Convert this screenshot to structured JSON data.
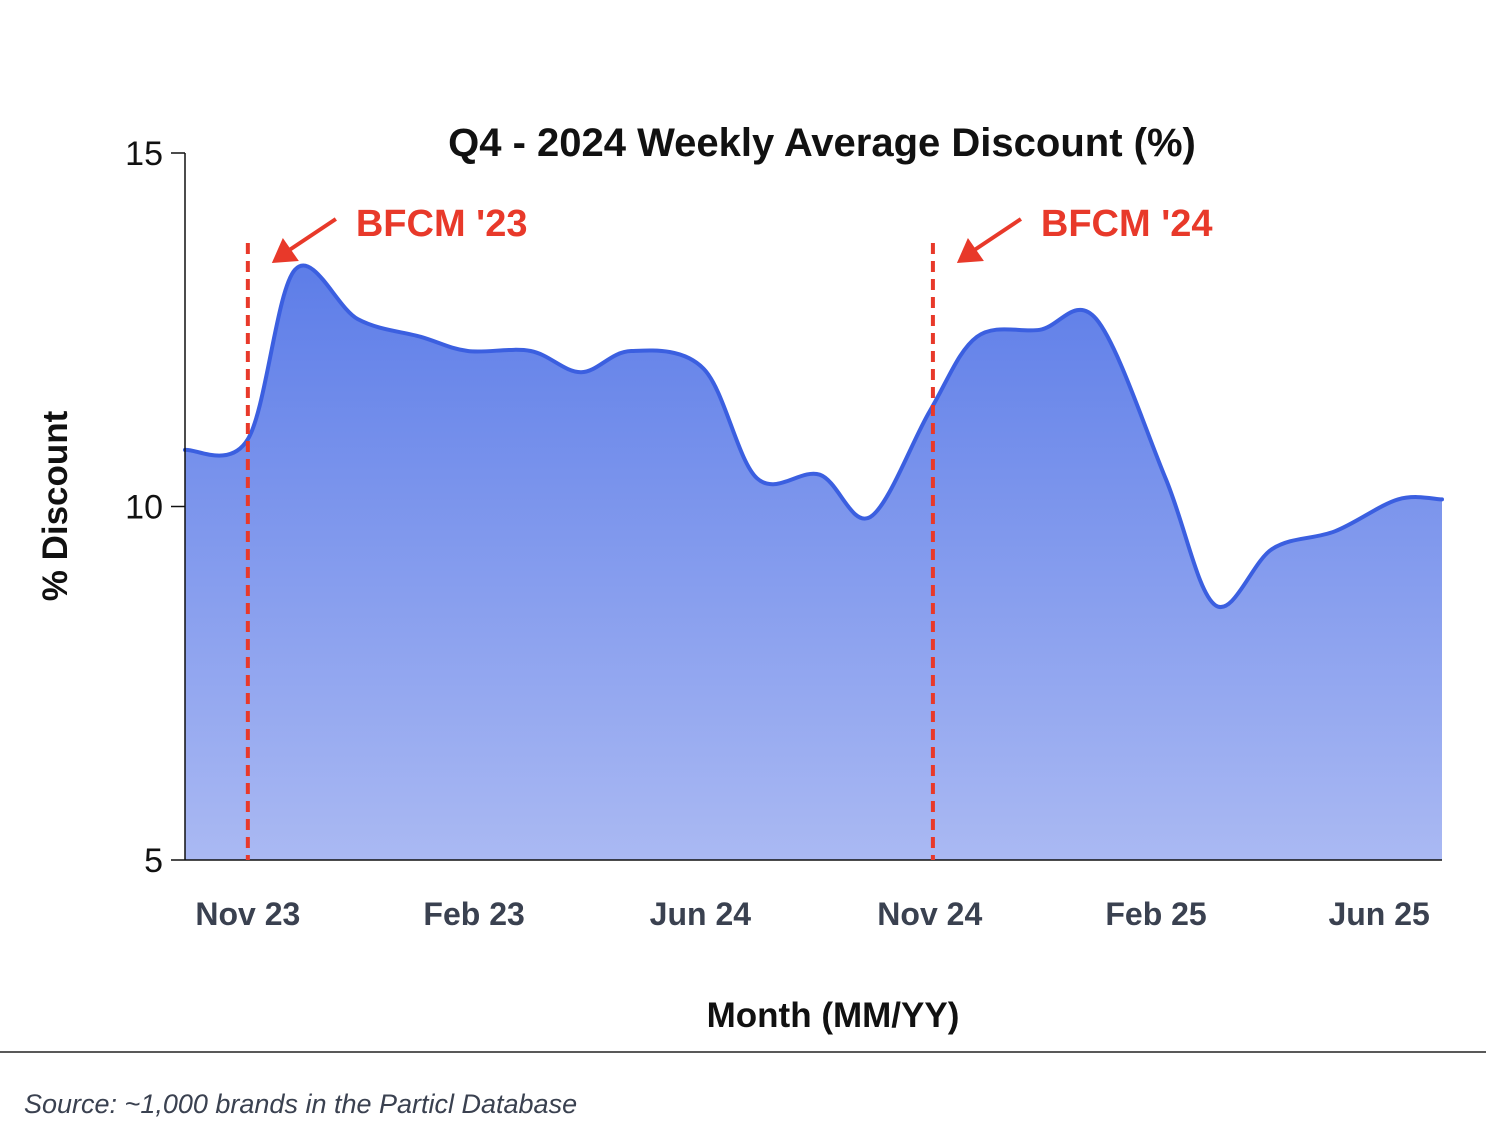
{
  "chart_data": {
    "type": "area",
    "title": "Q4 - 2024 Weekly Average Discount (%)",
    "xlabel": "Month (MM/YY)",
    "ylabel": "% Discount",
    "ylim": [
      5,
      15
    ],
    "yticks": [
      5,
      10,
      15
    ],
    "xlim": [
      0,
      20
    ],
    "xtick_positions": [
      1,
      4.6,
      8.2,
      11.85,
      15.45,
      19
    ],
    "xtick_labels": [
      "Nov 23",
      "Feb 23",
      "Jun 24",
      "Nov 24",
      "Feb 25",
      "Jun 25"
    ],
    "grid": false,
    "series": [
      {
        "name": "Weekly Average Discount (%)",
        "x": [
          0,
          1,
          1.75,
          2.75,
          3.75,
          4.5,
          5.5,
          6.3,
          7.1,
          8.25,
          9.1,
          10.1,
          10.9,
          11.85,
          12.6,
          13.6,
          14.5,
          15.6,
          16.4,
          17.3,
          18.3,
          19.3,
          20
        ],
        "values": [
          10.8,
          10.95,
          13.35,
          12.65,
          12.4,
          12.2,
          12.2,
          11.9,
          12.2,
          11.95,
          10.4,
          10.45,
          9.85,
          11.35,
          12.4,
          12.5,
          12.65,
          10.4,
          8.6,
          9.4,
          9.65,
          10.1,
          10.1
        ],
        "color": "#3b5fe0"
      }
    ],
    "annotations": [
      {
        "label": "BFCM '23",
        "x": 1,
        "color": "#e8392a"
      },
      {
        "label": "BFCM '24",
        "x": 11.9,
        "color": "#e8392a"
      }
    ]
  },
  "source": "Source: ~1,000 brands in the Particl Database",
  "colors": {
    "line": "#3b5fe0",
    "fill_top": "#5d7de8",
    "fill_bottom": "#aab9f3",
    "annotation": "#e8392a"
  }
}
